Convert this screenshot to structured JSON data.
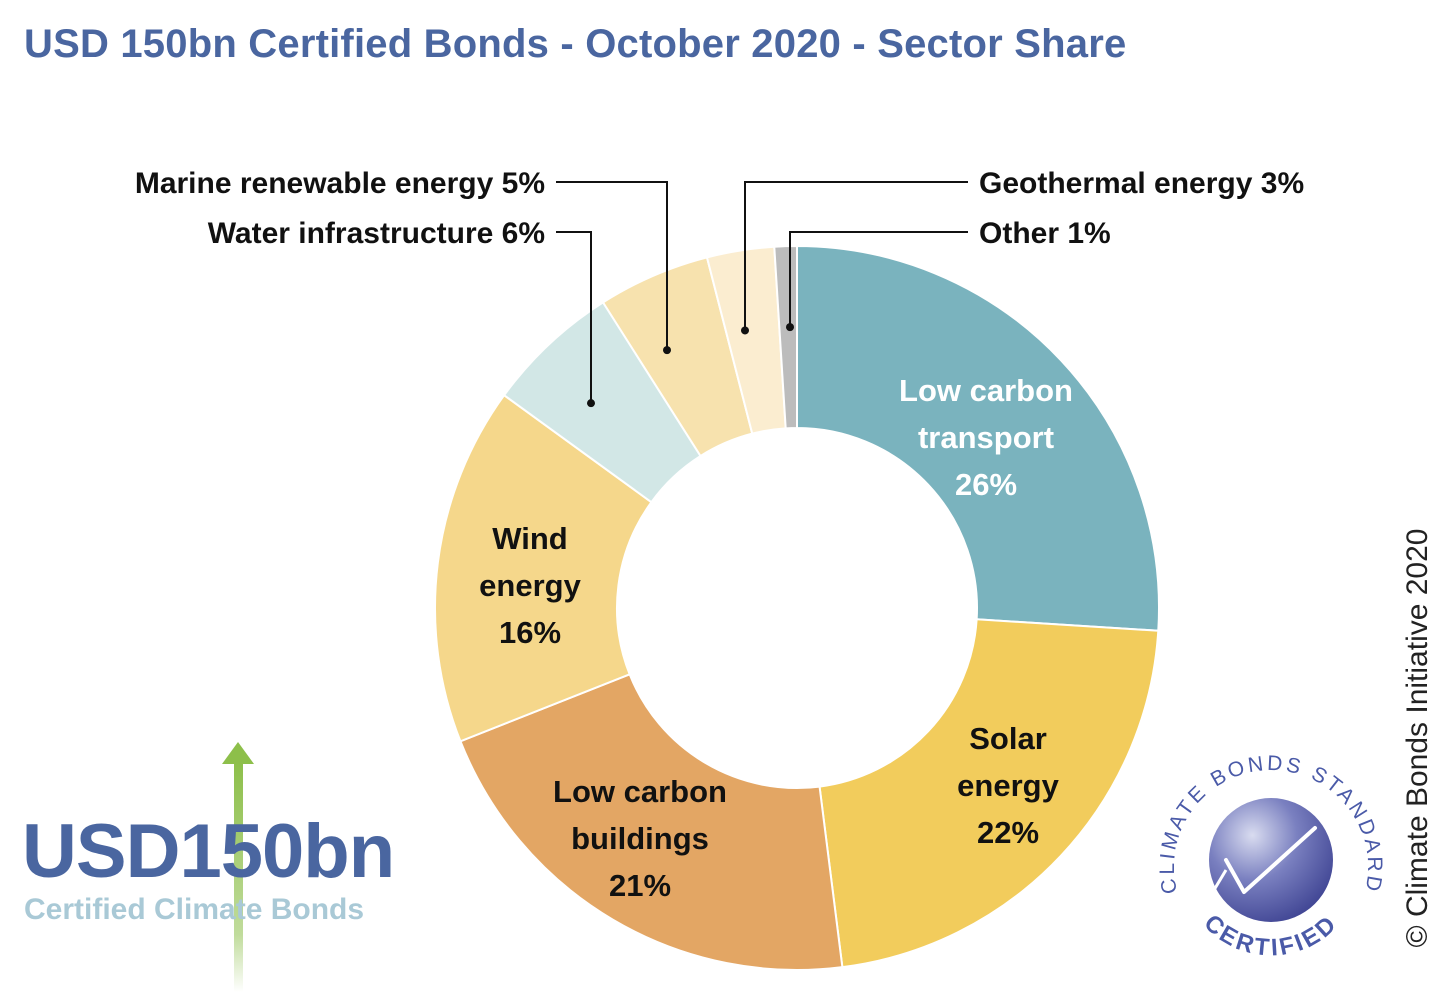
{
  "title": "USD 150bn Certified Bonds - October 2020 - Sector Share",
  "copyright": "© Climate Bonds Initiative 2020",
  "badge": {
    "amount": "USD150bn",
    "subtitle": "Certified Climate Bonds"
  },
  "logo": {
    "top_text": "CLIMATE BONDS STANDARD",
    "bottom_text": "CERTIFIED"
  },
  "colors": {
    "title": "#4a66a0",
    "arrow": "#8dbf4a",
    "logo": "#4a5aa8"
  },
  "chart_data": {
    "type": "pie",
    "donut": true,
    "title": "USD 150bn Certified Bonds - October 2020 - Sector Share",
    "slices": [
      {
        "name": "Low carbon transport",
        "value": 26,
        "label": [
          "Low carbon",
          "transport",
          "26%"
        ],
        "color": "#7ab3be",
        "label_color": "#ffffff"
      },
      {
        "name": "Solar energy",
        "value": 22,
        "label": [
          "Solar",
          "energy",
          "22%"
        ],
        "color": "#f2cc5c",
        "label_color": "#111111"
      },
      {
        "name": "Low carbon buildings",
        "value": 21,
        "label": [
          "Low carbon",
          "buildings",
          "21%"
        ],
        "color": "#e3a664",
        "label_color": "#111111"
      },
      {
        "name": "Wind energy",
        "value": 16,
        "label": [
          "Wind",
          "energy",
          "16%"
        ],
        "color": "#f5d78b",
        "label_color": "#111111"
      },
      {
        "name": "Water infrastructure",
        "value": 6,
        "label": [
          "Water infrastructure 6%"
        ],
        "color": "#d2e7e6",
        "label_color": "#111111"
      },
      {
        "name": "Marine renewable energy",
        "value": 5,
        "label": [
          "Marine renewable energy 5%"
        ],
        "color": "#f7e2ae",
        "label_color": "#111111"
      },
      {
        "name": "Geothermal energy",
        "value": 3,
        "label": [
          "Geothermal energy 3%"
        ],
        "color": "#fbedd0",
        "label_color": "#111111"
      },
      {
        "name": "Other",
        "value": 1,
        "label": [
          "Other 1%"
        ],
        "color": "#bcbcbc",
        "label_color": "#111111"
      }
    ]
  }
}
